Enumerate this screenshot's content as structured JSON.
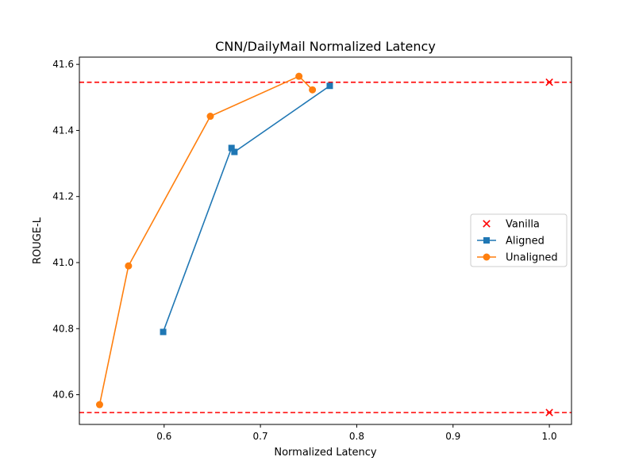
{
  "chart_data": {
    "type": "line",
    "title": "CNN/DailyMail Normalized Latency",
    "xlabel": "Normalized Latency",
    "ylabel": "ROUGE-L",
    "xlim": [
      0.512,
      1.023
    ],
    "ylim": [
      40.51,
      41.622
    ],
    "xticks": [
      0.6,
      0.7,
      0.8,
      0.9,
      1.0
    ],
    "yticks": [
      40.6,
      40.8,
      41.0,
      41.2,
      41.4,
      41.6
    ],
    "grid": false,
    "legend_position": "center-right",
    "series": [
      {
        "name": "Vanilla",
        "kind": "scatter",
        "marker": "x",
        "color": "#ff0000",
        "points": [
          [
            1.0,
            41.546
          ],
          [
            1.0,
            40.546
          ]
        ]
      },
      {
        "name": "Aligned",
        "kind": "line",
        "marker": "square",
        "color": "#1f77b4",
        "points": [
          [
            0.599,
            40.79
          ],
          [
            0.67,
            41.347
          ],
          [
            0.673,
            41.335
          ],
          [
            0.772,
            41.535
          ]
        ]
      },
      {
        "name": "Unaligned",
        "kind": "line",
        "marker": "circle",
        "color": "#ff7f0e",
        "points": [
          [
            0.533,
            40.57
          ],
          [
            0.563,
            40.99
          ],
          [
            0.648,
            41.443
          ],
          [
            0.74,
            41.564
          ],
          [
            0.754,
            41.523
          ]
        ]
      }
    ],
    "reference_lines": [
      {
        "y": 41.546,
        "color": "#ff0000",
        "style": "dashed"
      },
      {
        "y": 40.546,
        "color": "#ff0000",
        "style": "dashed"
      }
    ]
  }
}
